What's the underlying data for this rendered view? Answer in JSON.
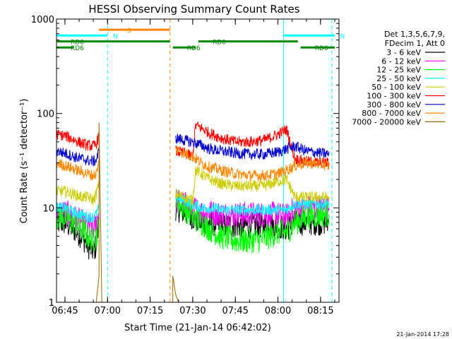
{
  "chart_data": {
    "type": "line",
    "title": "HESSI Observing Summary Count Rates",
    "xlabel": "Start Time (21-Jan-14 06:42:02)",
    "ylabel": "Count Rate (s⁻¹ detector⁻¹)",
    "y_scale": "log",
    "ylim": [
      1,
      1000
    ],
    "y_ticks": [
      {
        "value": 1,
        "label": "1"
      },
      {
        "value": 10,
        "label": "10"
      },
      {
        "value": 100,
        "label": "100"
      },
      {
        "value": 1000,
        "label": "1000"
      }
    ],
    "xlim": [
      "06:42:02",
      "08:21:30"
    ],
    "x_ticks": [
      {
        "value": "06:45",
        "label": "06:45"
      },
      {
        "value": "07:00",
        "label": "07:00"
      },
      {
        "value": "07:15",
        "label": "07:15"
      },
      {
        "value": "07:30",
        "label": "07:30"
      },
      {
        "value": "07:45",
        "label": "07:45"
      },
      {
        "value": "08:00",
        "label": "08:00"
      },
      {
        "value": "08:15",
        "label": "08:15"
      }
    ],
    "legend_header": [
      "Det 1,3,5,6,7,9,",
      "FDecim 1, Att 0"
    ],
    "legend_position": "right",
    "series": [
      {
        "name": "3 - 6 keV",
        "color": "#000000",
        "segments": [
          {
            "x": [
              "06:42:02",
              "06:45",
              "06:48",
              "06:51",
              "06:53",
              "06:55",
              "06:56",
              "06:57"
            ],
            "y": [
              7,
              7,
              6,
              5,
              4,
              3.5,
              4,
              8
            ]
          },
          {
            "x": [
              "07:24",
              "07:27",
              "07:30",
              "07:33",
              "07:36",
              "07:40",
              "07:45",
              "07:50",
              "07:55",
              "08:00",
              "08:03",
              "08:06",
              "08:10",
              "08:15",
              "08:18"
            ],
            "y": [
              10,
              9,
              8,
              7,
              7,
              6.5,
              6.5,
              6.5,
              6.5,
              6.5,
              6,
              7,
              7,
              7,
              7
            ]
          }
        ]
      },
      {
        "name": "6 - 12 keV",
        "color": "#ff00ff",
        "segments": [
          {
            "x": [
              "06:42:02",
              "06:45",
              "06:48",
              "06:51",
              "06:53",
              "06:55",
              "06:56",
              "06:57"
            ],
            "y": [
              9,
              9,
              8,
              7,
              6.5,
              6,
              7,
              9
            ]
          },
          {
            "x": [
              "07:24",
              "07:27",
              "07:30",
              "07:33",
              "07:36",
              "07:40",
              "07:45",
              "07:50",
              "07:55",
              "08:00",
              "08:03",
              "08:06",
              "08:10",
              "08:15",
              "08:18"
            ],
            "y": [
              12,
              11,
              10,
              9,
              9,
              8.5,
              8.5,
              8.5,
              8.5,
              8.5,
              8,
              10,
              10,
              10,
              10
            ]
          }
        ]
      },
      {
        "name": "12 - 25 keV",
        "color": "#00ff00",
        "segments": [
          {
            "x": [
              "06:42:02",
              "06:45",
              "06:48",
              "06:51",
              "06:53",
              "06:55",
              "06:56",
              "06:57"
            ],
            "y": [
              8,
              8,
              7,
              6,
              5,
              4.5,
              5,
              7
            ]
          },
          {
            "x": [
              "07:24",
              "07:27",
              "07:30",
              "07:33",
              "07:36",
              "07:40",
              "07:45",
              "07:50",
              "07:55",
              "08:00",
              "08:03",
              "08:06",
              "08:10",
              "08:15",
              "08:18"
            ],
            "y": [
              12,
              10,
              8,
              7,
              6,
              5,
              4.5,
              4.5,
              4.7,
              5.5,
              5.5,
              7,
              8,
              8.5,
              8.5
            ]
          }
        ]
      },
      {
        "name": "25 - 50 keV",
        "color": "#00ffff",
        "segments": [
          {
            "x": [
              "06:42:02",
              "06:45",
              "06:48",
              "06:51",
              "06:53",
              "06:55",
              "06:56",
              "06:57"
            ],
            "y": [
              10,
              10,
              9,
              8.5,
              8,
              8,
              8.5,
              10
            ]
          },
          {
            "x": [
              "07:24",
              "07:27",
              "07:30",
              "07:33",
              "07:36",
              "07:40",
              "07:45",
              "07:50",
              "07:55",
              "08:00",
              "08:03",
              "08:06",
              "08:10",
              "08:15",
              "08:18"
            ],
            "y": [
              13,
              12,
              11,
              10,
              10,
              9.5,
              9.5,
              9.5,
              9.5,
              9.5,
              9.5,
              11,
              11,
              11,
              11
            ]
          }
        ]
      },
      {
        "name": "50 - 100 keV",
        "color": "#cccc00",
        "segments": [
          {
            "x": [
              "06:42:02",
              "06:45",
              "06:48",
              "06:51",
              "06:53",
              "06:55",
              "06:56",
              "06:57"
            ],
            "y": [
              15,
              15,
              14,
              13,
              13,
              12,
              14,
              18
            ]
          },
          {
            "x": [
              "07:24",
              "07:27",
              "07:30",
              "07:31",
              "07:33",
              "07:36",
              "07:40",
              "07:45",
              "07:50",
              "07:55",
              "08:00",
              "08:03",
              "08:06",
              "08:10",
              "08:15",
              "08:18"
            ],
            "y": [
              14,
              13,
              12,
              25,
              23,
              20,
              18,
              17,
              17,
              17,
              19,
              20,
              13,
              13,
              13,
              13
            ]
          }
        ]
      },
      {
        "name": "100 - 300 keV",
        "color": "#ff0000",
        "segments": [
          {
            "x": [
              "06:42:02",
              "06:45",
              "06:48",
              "06:51",
              "06:53",
              "06:55",
              "06:56",
              "06:57"
            ],
            "y": [
              60,
              58,
              53,
              48,
              46,
              45,
              47,
              60
            ]
          },
          {
            "x": [
              "07:24",
              "07:27",
              "07:30",
              "07:31",
              "07:33",
              "07:36",
              "07:40",
              "07:45",
              "07:50",
              "07:55",
              "08:00",
              "08:03",
              "08:06",
              "08:10",
              "08:15",
              "08:18"
            ],
            "y": [
              40,
              38,
              35,
              75,
              70,
              62,
              55,
              50,
              50,
              52,
              60,
              68,
              33,
              31,
              30,
              30
            ]
          }
        ]
      },
      {
        "name": "300 - 800 keV",
        "color": "#0000cc",
        "segments": [
          {
            "x": [
              "06:42:02",
              "06:45",
              "06:48",
              "06:51",
              "06:53",
              "06:55",
              "06:56",
              "06:57"
            ],
            "y": [
              40,
              38,
              35,
              33,
              32,
              31,
              32,
              40
            ]
          },
          {
            "x": [
              "07:24",
              "07:27",
              "07:30",
              "07:33",
              "07:36",
              "07:40",
              "07:45",
              "07:50",
              "07:55",
              "08:00",
              "08:03",
              "08:06",
              "08:10",
              "08:15",
              "08:18"
            ],
            "y": [
              55,
              52,
              50,
              46,
              42,
              40,
              38,
              37,
              37,
              39,
              42,
              45,
              40,
              38,
              37
            ]
          }
        ]
      },
      {
        "name": "800 - 7000 keV",
        "color": "#ff8800",
        "segments": [
          {
            "x": [
              "06:42:02",
              "06:45",
              "06:48",
              "06:51",
              "06:53",
              "06:55",
              "06:56",
              "06:57"
            ],
            "y": [
              30,
              28,
              26,
              24,
              23,
              22,
              23,
              30
            ]
          },
          {
            "x": [
              "07:24",
              "07:27",
              "07:30",
              "07:33",
              "07:36",
              "07:40",
              "07:45",
              "07:50",
              "07:55",
              "08:00",
              "08:03",
              "08:06",
              "08:10",
              "08:15",
              "08:18"
            ],
            "y": [
              42,
              38,
              35,
              30,
              27,
              25,
              23,
              22,
              22,
              23,
              25,
              28,
              30,
              29,
              28
            ]
          }
        ]
      },
      {
        "name": "7000 - 20000 keV",
        "color": "#996600",
        "segments": [
          {
            "x": [
              "06:56",
              "06:57",
              "06:57",
              "06:58"
            ],
            "y": [
              1,
              1.9,
              80,
              1
            ]
          },
          {
            "x": [
              "07:23",
              "07:23",
              "07:24",
              "07:25"
            ],
            "y": [
              1,
              1.9,
              1.2,
              1
            ]
          }
        ]
      }
    ],
    "annotations": {
      "flag_bars": [
        {
          "label": "S",
          "color": "#ff8800",
          "x": [
            "06:57",
            "07:22"
          ],
          "y": 770
        },
        {
          "label": "N",
          "color": "#00ffff",
          "x": [
            "06:42:02",
            "07:00"
          ],
          "y": 670
        },
        {
          "label": "N",
          "color": "#00ffff",
          "x": [
            "08:02",
            "08:20"
          ],
          "y": 670
        },
        {
          "label": "RD0",
          "color": "#008800",
          "x": [
            "06:42:02",
            "07:22"
          ],
          "y": 580
        },
        {
          "label": "RD0",
          "color": "#008800",
          "x": [
            "07:32",
            "08:07"
          ],
          "y": 580
        },
        {
          "label": "RD6",
          "color": "#008800",
          "x": [
            "06:42:02",
            "06:48"
          ],
          "y": 500
        },
        {
          "label": "RD6",
          "color": "#008800",
          "x": [
            "07:23",
            "07:31"
          ],
          "y": 500
        },
        {
          "label": "RD6",
          "color": "#008800",
          "x": [
            "08:08",
            "08:20"
          ],
          "y": 500
        }
      ],
      "vertical_lines": [
        {
          "x": "06:42:02",
          "color": "#00ffff",
          "dash": false
        },
        {
          "x": "07:00",
          "color": "#00ffff",
          "dash": true
        },
        {
          "x": "07:22",
          "color": "#ff8800",
          "dash": true
        },
        {
          "x": "08:02",
          "color": "#00ffff",
          "dash": false
        },
        {
          "x": "08:19",
          "color": "#00ffff",
          "dash": true
        }
      ]
    },
    "footer_date": "21-Jan-2014 17:28"
  }
}
